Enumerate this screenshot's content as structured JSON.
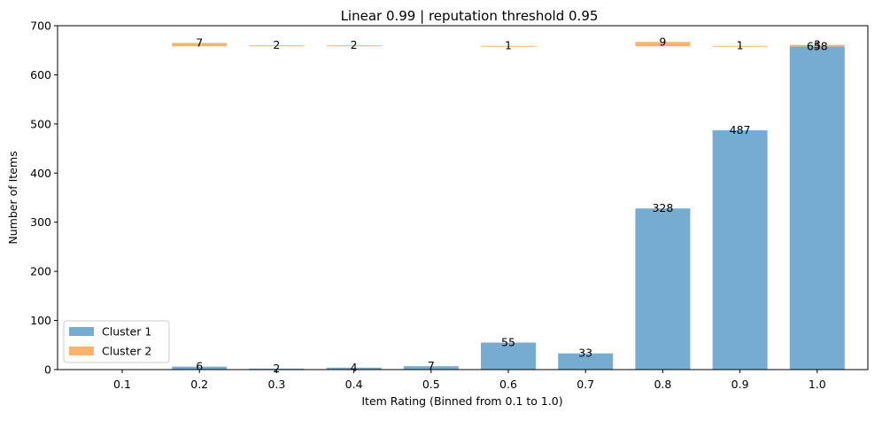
{
  "chart_data": {
    "type": "bar",
    "title": "Linear 0.99 | reputation threshold 0.95",
    "xlabel": "Item Rating (Binned from 0.1 to 1.0)",
    "ylabel": "Number of Items",
    "categories": [
      "0.1",
      "0.2",
      "0.3",
      "0.4",
      "0.5",
      "0.6",
      "0.7",
      "0.8",
      "0.9",
      "1.0"
    ],
    "ylim": [
      0,
      700
    ],
    "yticks": [
      0,
      100,
      200,
      300,
      400,
      500,
      600,
      700
    ],
    "grid": false,
    "legend_position": "lower-left",
    "series": [
      {
        "name": "Cluster 1",
        "color": "#77acd1",
        "values": [
          0,
          6,
          2,
          4,
          7,
          55,
          33,
          328,
          487,
          658
        ],
        "labels": [
          "",
          "6",
          "2",
          "4",
          "7",
          "55",
          "33",
          "328",
          "487",
          "658"
        ],
        "stacked_on": null
      },
      {
        "name": "Cluster 2",
        "color": "#f9b36f",
        "values": [
          0,
          7,
          2,
          2,
          0,
          1,
          0,
          9,
          1,
          3
        ],
        "labels": [
          "",
          "7",
          "2",
          "2",
          "",
          "1",
          "",
          "9",
          "1",
          "3"
        ],
        "base": 658
      }
    ]
  }
}
